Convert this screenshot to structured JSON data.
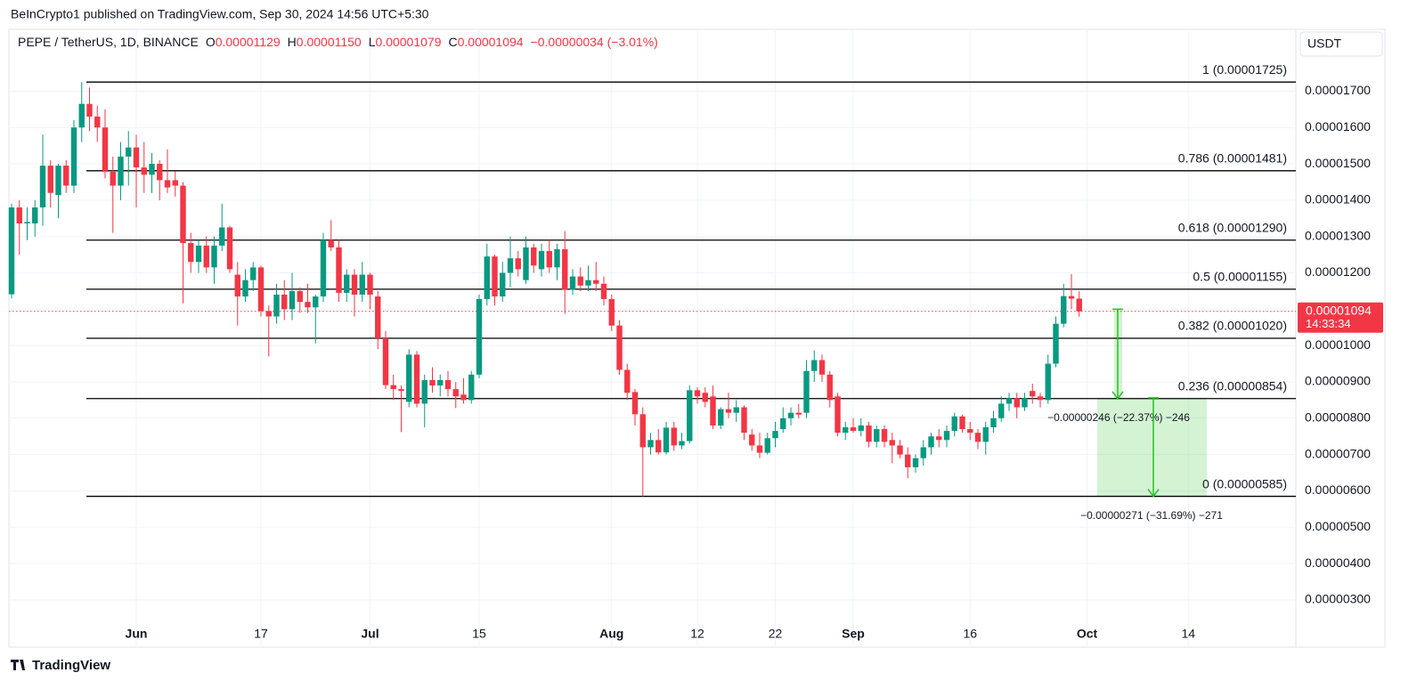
{
  "header": {
    "published": "BeInCrypto1 published on TradingView.com, Sep 30, 2024 14:56 UTC+5:30",
    "symbol": "PEPE / TetherUS, 1D, BINANCE",
    "ohlc": [
      {
        "key": "O",
        "value": "0.00001129"
      },
      {
        "key": "H",
        "value": "0.00001150"
      },
      {
        "key": "L",
        "value": "0.00001079"
      },
      {
        "key": "C",
        "value": "0.00001094"
      }
    ],
    "change": "−0.00000034 (−3.01%)",
    "currency": "USDT"
  },
  "footer": "TradingView",
  "chart_data": {
    "type": "candlestick",
    "categories": [
      null,
      null,
      null,
      null,
      null,
      null,
      null,
      null,
      null,
      null,
      null,
      null,
      null,
      null,
      null,
      null,
      "Jun",
      null,
      null,
      null,
      null,
      null,
      null,
      null,
      null,
      null,
      null,
      null,
      null,
      null,
      null,
      null,
      "17",
      null,
      null,
      null,
      null,
      null,
      null,
      null,
      null,
      null,
      null,
      null,
      null,
      null,
      "Jul",
      null,
      null,
      null,
      null,
      null,
      null,
      null,
      null,
      null,
      null,
      null,
      null,
      null,
      "15",
      null,
      null,
      null,
      null,
      null,
      null,
      null,
      null,
      null,
      null,
      null,
      null,
      null,
      null,
      null,
      null,
      "Aug",
      null,
      null,
      null,
      null,
      null,
      null,
      null,
      null,
      null,
      null,
      "12",
      null,
      null,
      null,
      null,
      null,
      null,
      null,
      null,
      null,
      "22",
      null,
      null,
      null,
      null,
      null,
      null,
      null,
      null,
      null,
      "Sep",
      null,
      null,
      null,
      null,
      null,
      null,
      null,
      null,
      null,
      null,
      null,
      null,
      null,
      null,
      "16",
      null,
      null,
      null,
      null,
      null,
      null,
      null,
      null,
      null,
      null,
      null,
      null,
      null,
      null,
      "Oct",
      null,
      null,
      null,
      null,
      null,
      null,
      null,
      null,
      null,
      null,
      null,
      null,
      "14"
    ],
    "open": [
      1.141e-05,
      1.38e-05,
      1.336e-05,
      1.336e-05,
      1.38e-05,
      1.495e-05,
      1.414e-05,
      1.495e-05,
      1.44e-05,
      1.6e-05,
      1.665e-05,
      1.63e-05,
      1.6e-05,
      1.478e-05,
      1.44e-05,
      1.52e-05,
      1.545e-05,
      1.49e-05,
      1.47e-05,
      1.5e-05,
      1.455e-05,
      1.455e-05,
      1.44e-05,
      1.282e-05,
      1.23e-05,
      1.275e-05,
      1.215e-05,
      1.275e-05,
      1.325e-05,
      1.195e-05,
      1.135e-05,
      1.18e-05,
      1.215e-05,
      1.095e-05,
      1.08e-05,
      1.14e-05,
      1.1e-05,
      1.15e-05,
      1.12e-05,
      1.105e-05,
      1.135e-05,
      1.29e-05,
      1.27e-05,
      1.145e-05,
      1.195e-05,
      1.14e-05,
      1.195e-05,
      1.135e-05,
      1.02e-05,
      8.91e-06,
      8.8e-06,
      8.45e-06,
      9.75e-06,
      8.4e-06,
      9.05e-06,
      8.9e-06,
      9.05e-06,
      8.8e-06,
      8.65e-06,
      8.5e-06,
      9.2e-06,
      1.128e-05,
      1.245e-05,
      1.135e-05,
      1.2e-05,
      1.24e-05,
      1.18e-05,
      1.27e-05,
      1.21e-05,
      1.26e-05,
      1.215e-05,
      1.265e-05,
      1.153e-05,
      1.19e-05,
      1.165e-05,
      1.18e-05,
      1.17e-05,
      1.128e-05,
      1.055e-05,
      9.33e-06,
      8.72e-06,
      8.11e-06,
      7.2e-06,
      7.4e-06,
      7.06e-06,
      7.74e-06,
      7.25e-06,
      7.37e-06,
      8.77e-06,
      8.7e-06,
      8.6e-06,
      7.8e-06,
      8.25e-06,
      8.15e-06,
      8.3e-06,
      7.55e-06,
      7.25e-06,
      7.05e-06,
      7.45e-06,
      7.7e-06,
      8e-06,
      8.15e-06,
      8.15e-06,
      9.3e-06,
      9.6e-06,
      9.2e-06,
      8.6e-06,
      7.6e-06,
      7.75e-06,
      7.65e-06,
      7.8e-06,
      7.35e-06,
      7.7e-06,
      7.4e-06,
      7.25e-06,
      7e-06,
      6.65e-06,
      6.9e-06,
      7.2e-06,
      7.5e-06,
      7.4e-06,
      7.65e-06,
      8.05e-06,
      7.7e-06,
      7.6e-06,
      7.35e-06,
      7.75e-06,
      8e-06,
      8.4e-06,
      8.55e-06,
      8.3e-06,
      8.75e-06,
      8.6e-06,
      8.5e-06,
      9.5e-06,
      1.06e-05,
      1.136e-05,
      1.129e-05,
      null,
      null,
      null,
      null,
      null,
      null,
      null,
      null,
      null,
      null,
      null,
      null,
      null,
      null
    ],
    "high": [
      1.39e-05,
      1.4e-05,
      1.38e-05,
      1.4e-05,
      1.58e-05,
      1.51e-05,
      1.5e-05,
      1.51e-05,
      1.62e-05,
      1.725e-05,
      1.71e-05,
      1.66e-05,
      1.65e-05,
      1.52e-05,
      1.56e-05,
      1.59e-05,
      1.58e-05,
      1.56e-05,
      1.53e-05,
      1.51e-05,
      1.54e-05,
      1.48e-05,
      1.45e-05,
      1.31e-05,
      1.29e-05,
      1.3e-05,
      1.3e-05,
      1.39e-05,
      1.33e-05,
      1.23e-05,
      1.21e-05,
      1.23e-05,
      1.22e-05,
      1.11e-05,
      1.17e-05,
      1.18e-05,
      1.2e-05,
      1.16e-05,
      1.17e-05,
      1.14e-05,
      1.31e-05,
      1.345e-05,
      1.29e-05,
      1.21e-05,
      1.21e-05,
      1.23e-05,
      1.2e-05,
      1.15e-05,
      1.04e-05,
      9.2e-06,
      8.9e-06,
      9.9e-06,
      9.85e-06,
      9.2e-06,
      9.4e-06,
      9.2e-06,
      9.3e-06,
      9e-06,
      9.1e-06,
      9.3e-06,
      1.14e-05,
      1.28e-05,
      1.25e-05,
      1.23e-05,
      1.3e-05,
      1.26e-05,
      1.3e-05,
      1.28e-05,
      1.28e-05,
      1.29e-05,
      1.28e-05,
      1.315e-05,
      1.21e-05,
      1.215e-05,
      1.22e-05,
      1.23e-05,
      1.19e-05,
      1.14e-05,
      1.07e-05,
      9.5e-06,
      8.8e-06,
      8.3e-06,
      7.6e-06,
      7.7e-06,
      7.9e-06,
      7.9e-06,
      7.6e-06,
      8.9e-06,
      8.85e-06,
      8.85e-06,
      8.9e-06,
      8.3e-06,
      8.7e-06,
      8.5e-06,
      8.35e-06,
      7.7e-06,
      7.6e-06,
      7.6e-06,
      7.9e-06,
      8.3e-06,
      8.3e-06,
      8.4e-06,
      9.6e-06,
      9.87e-06,
      9.75e-06,
      9.3e-06,
      8.7e-06,
      7.9e-06,
      8e-06,
      8e-06,
      7.9e-06,
      7.8e-06,
      7.8e-06,
      7.6e-06,
      7.4e-06,
      7.2e-06,
      7e-06,
      7.4e-06,
      7.6e-06,
      7.7e-06,
      7.8e-06,
      8.15e-06,
      8.1e-06,
      7.9e-06,
      7.7e-06,
      7.9e-06,
      8.2e-06,
      8.6e-06,
      8.7e-06,
      8.7e-06,
      8.7e-06,
      8.95e-06,
      8.7e-06,
      9.75e-06,
      1.08e-05,
      1.17e-05,
      1.197e-05,
      1.15e-05,
      null,
      null,
      null,
      null,
      null,
      null,
      null,
      null,
      null,
      null,
      null,
      null,
      null,
      null
    ],
    "low": [
      1.13e-05,
      1.25e-05,
      1.29e-05,
      1.3e-05,
      1.33e-05,
      1.38e-05,
      1.35e-05,
      1.42e-05,
      1.42e-05,
      1.56e-05,
      1.59e-05,
      1.56e-05,
      1.46e-05,
      1.31e-05,
      1.4e-05,
      1.44e-05,
      1.38e-05,
      1.42e-05,
      1.42e-05,
      1.4e-05,
      1.42e-05,
      1.41e-05,
      1.116e-05,
      1.2e-05,
      1.2e-05,
      1.2e-05,
      1.17e-05,
      1.26e-05,
      1.2e-05,
      1.055e-05,
      1.12e-05,
      1.15e-05,
      1.08e-05,
      9.7e-06,
      1.06e-05,
      1.07e-05,
      1.07e-05,
      1.09e-05,
      1.09e-05,
      1.006e-05,
      1.12e-05,
      1.26e-05,
      1.12e-05,
      1.12e-05,
      1.08e-05,
      1.12e-05,
      1.1e-05,
      9.9e-06,
      8.8e-06,
      8.5e-06,
      7.62e-06,
      8.3e-06,
      8.3e-06,
      7.75e-06,
      8.7e-06,
      8.6e-06,
      8.6e-06,
      8.28e-06,
      8.4e-06,
      8.4e-06,
      9.1e-06,
      1.11e-05,
      1.11e-05,
      1.12e-05,
      1.16e-05,
      1.19e-05,
      1.17e-05,
      1.2e-05,
      1.19e-05,
      1.2e-05,
      1.18e-05,
      1.087e-05,
      1.14e-05,
      1.15e-05,
      1.15e-05,
      1.15e-05,
      1.11e-05,
      1.04e-05,
      9.2e-06,
      8.5e-06,
      7.8e-06,
      5.85e-06,
      7e-06,
      7e-06,
      7e-06,
      7.1e-06,
      7.15e-06,
      7.3e-06,
      8.4e-06,
      8.3e-06,
      7.7e-06,
      7.7e-06,
      8e-06,
      7.9e-06,
      7.4e-06,
      7.1e-06,
      6.9e-06,
      7e-06,
      7.2e-06,
      7.6e-06,
      7.8e-06,
      8e-06,
      8e-06,
      9e-06,
      9e-06,
      8.3e-06,
      7.5e-06,
      7.4e-06,
      7.6e-06,
      7.5e-06,
      7.2e-06,
      7.2e-06,
      7.2e-06,
      6.76e-06,
      6.9e-06,
      6.35e-06,
      6.5e-06,
      6.7e-06,
      7e-06,
      7.2e-06,
      7.2e-06,
      7.5e-06,
      7.6e-06,
      7.4e-06,
      7.15e-06,
      7e-06,
      7.6e-06,
      7.9e-06,
      8.2e-06,
      8e-06,
      8.2e-06,
      8.4e-06,
      8.3e-06,
      8.4e-06,
      9.4e-06,
      1.05e-05,
      1.1e-05,
      1.079e-05,
      null,
      null,
      null,
      null,
      null,
      null,
      null,
      null,
      null,
      null,
      null,
      null,
      null,
      null
    ],
    "close": [
      1.38e-05,
      1.336e-05,
      1.34e-05,
      1.38e-05,
      1.495e-05,
      1.42e-05,
      1.495e-05,
      1.44e-05,
      1.6e-05,
      1.665e-05,
      1.63e-05,
      1.6e-05,
      1.478e-05,
      1.44e-05,
      1.52e-05,
      1.545e-05,
      1.49e-05,
      1.47e-05,
      1.5e-05,
      1.455e-05,
      1.435e-05,
      1.44e-05,
      1.282e-05,
      1.23e-05,
      1.275e-05,
      1.215e-05,
      1.275e-05,
      1.325e-05,
      1.21e-05,
      1.135e-05,
      1.18e-05,
      1.215e-05,
      1.095e-05,
      1.08e-05,
      1.14e-05,
      1.1e-05,
      1.15e-05,
      1.12e-05,
      1.105e-05,
      1.135e-05,
      1.29e-05,
      1.27e-05,
      1.145e-05,
      1.195e-05,
      1.14e-05,
      1.195e-05,
      1.14e-05,
      1.02e-05,
      8.91e-06,
      8.8e-06,
      8.75e-06,
      9.75e-06,
      8.4e-06,
      9.05e-06,
      8.9e-06,
      9.05e-06,
      8.8e-06,
      8.6e-06,
      8.5e-06,
      9.2e-06,
      1.128e-05,
      1.245e-05,
      1.135e-05,
      1.2e-05,
      1.24e-05,
      1.21e-05,
      1.27e-05,
      1.22e-05,
      1.26e-05,
      1.215e-05,
      1.265e-05,
      1.153e-05,
      1.19e-05,
      1.165e-05,
      1.18e-05,
      1.17e-05,
      1.128e-05,
      1.055e-05,
      9.33e-06,
      8.7e-06,
      8.11e-06,
      7.2e-06,
      7.4e-06,
      7.06e-06,
      7.74e-06,
      7.25e-06,
      7.37e-06,
      8.77e-06,
      8.6e-06,
      8.45e-06,
      7.8e-06,
      8.25e-06,
      8.15e-06,
      8.3e-06,
      7.6e-06,
      7.25e-06,
      7.05e-06,
      7.45e-06,
      7.65e-06,
      8e-06,
      8.15e-06,
      8.1e-06,
      9.3e-06,
      9.6e-06,
      9.2e-06,
      8.5e-06,
      7.6e-06,
      7.75e-06,
      7.65e-06,
      7.8e-06,
      7.35e-06,
      7.7e-06,
      7.35e-06,
      7.25e-06,
      7e-06,
      6.65e-06,
      6.9e-06,
      7.2e-06,
      7.5e-06,
      7.4e-06,
      7.65e-06,
      8.05e-06,
      7.7e-06,
      7.6e-06,
      7.35e-06,
      7.75e-06,
      8e-06,
      8.4e-06,
      8.55e-06,
      8.3e-06,
      8.55e-06,
      8.6e-06,
      8.5e-06,
      9.5e-06,
      1.06e-05,
      1.136e-05,
      1.129e-05,
      1.094e-05,
      null,
      null,
      null,
      null,
      null,
      null,
      null,
      null,
      null,
      null,
      null,
      null,
      null,
      null
    ],
    "up_color": "#089981",
    "down_color": "#f23645",
    "ylim": [
      1.7e-06,
      1.87e-05
    ],
    "yticks": [
      {
        "value": 3e-06,
        "label": "0.00000300"
      },
      {
        "value": 4e-06,
        "label": "0.00000400"
      },
      {
        "value": 5e-06,
        "label": "0.00000500"
      },
      {
        "value": 6e-06,
        "label": "0.00000600"
      },
      {
        "value": 7e-06,
        "label": "0.00000700"
      },
      {
        "value": 8e-06,
        "label": "0.00000800"
      },
      {
        "value": 9e-06,
        "label": "0.00000900"
      },
      {
        "value": 1e-05,
        "label": "0.00001000"
      },
      {
        "value": 1.1e-05,
        "label": "0.00001100"
      },
      {
        "value": 1.2e-05,
        "label": "0.00001200"
      },
      {
        "value": 1.3e-05,
        "label": "0.00001300"
      },
      {
        "value": 1.4e-05,
        "label": "0.00001400"
      },
      {
        "value": 1.5e-05,
        "label": "0.00001500"
      },
      {
        "value": 1.6e-05,
        "label": "0.00001600"
      },
      {
        "value": 1.7e-05,
        "label": "0.00001700"
      }
    ],
    "grid": true,
    "fib_levels": [
      {
        "label": "1 (0.00001725)",
        "value": 1.725e-05
      },
      {
        "label": "0.786 (0.00001481)",
        "value": 1.481e-05
      },
      {
        "label": "0.618 (0.00001290)",
        "value": 1.29e-05
      },
      {
        "label": "0.5 (0.00001155)",
        "value": 1.155e-05
      },
      {
        "label": "0.382 (0.00001020)",
        "value": 1.02e-05
      },
      {
        "label": "0.236 (0.00000854)",
        "value": 8.54e-06
      },
      {
        "label": "0 (0.00000585)",
        "value": 5.85e-06
      }
    ],
    "fib_color": "#000000",
    "measurements": [
      {
        "label": "−0.00000246 (−22.37%) −246",
        "from": 1.1e-05,
        "to": 8.54e-06
      },
      {
        "label": "−0.00000271 (−31.69%) −271",
        "from": 8.56e-06,
        "to": 5.85e-06
      }
    ],
    "measure_color": "#22c322",
    "price_label": "0.00001094",
    "countdown": "14:33:34"
  }
}
